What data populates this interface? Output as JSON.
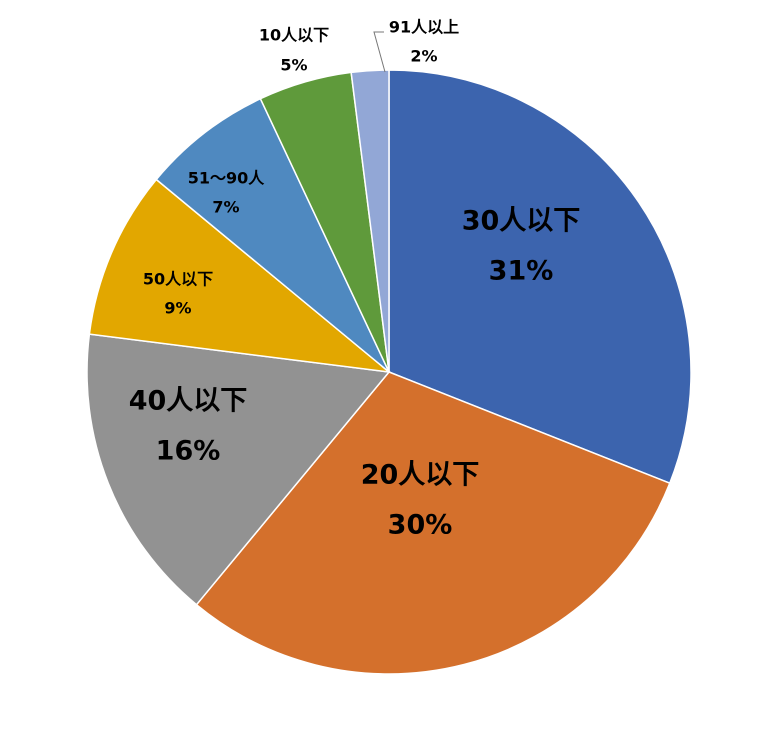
{
  "chart_data": {
    "type": "pie",
    "categories": [
      "30人以下",
      "20人以下",
      "40人以下",
      "50人以下",
      "51〜90人",
      "10人以下",
      "91人以上"
    ],
    "values": [
      31,
      30,
      16,
      9,
      7,
      5,
      2
    ],
    "value_labels": [
      "31%",
      "30%",
      "16%",
      "9%",
      "7%",
      "5%",
      "2%"
    ],
    "colors": [
      "#3c64ae",
      "#d4702c",
      "#929292",
      "#e2a700",
      "#4f89c0",
      "#5f9a3b",
      "#92a7d6"
    ]
  }
}
